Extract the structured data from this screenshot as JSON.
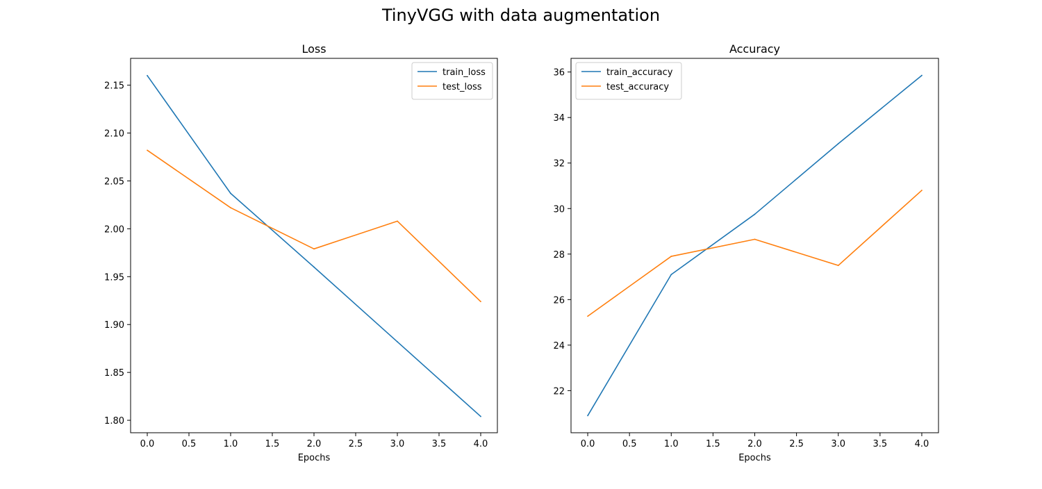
{
  "figure": {
    "suptitle": "TinyVGG with data augmentation"
  },
  "chart_data": [
    {
      "type": "line",
      "title": "Loss",
      "xlabel": "Epochs",
      "ylabel": "",
      "x": [
        0,
        1,
        2,
        3,
        4
      ],
      "xlim": [
        -0.2,
        4.2
      ],
      "ylim": [
        1.787,
        2.178
      ],
      "xticks": [
        0.0,
        0.5,
        1.0,
        1.5,
        2.0,
        2.5,
        3.0,
        3.5,
        4.0
      ],
      "xtick_labels": [
        "0.0",
        "0.5",
        "1.0",
        "1.5",
        "2.0",
        "2.5",
        "3.0",
        "3.5",
        "4.0"
      ],
      "yticks": [
        1.8,
        1.85,
        1.9,
        1.95,
        2.0,
        2.05,
        2.1,
        2.15
      ],
      "ytick_labels": [
        "1.80",
        "1.85",
        "1.90",
        "1.95",
        "2.00",
        "2.05",
        "2.10",
        "2.15"
      ],
      "legend": "upper right",
      "grid": false,
      "series": [
        {
          "name": "train_loss",
          "color": "#1f77b4",
          "values": [
            2.16,
            2.037,
            1.96,
            1.882,
            1.804
          ]
        },
        {
          "name": "test_loss",
          "color": "#ff7f0e",
          "values": [
            2.082,
            2.022,
            1.979,
            2.008,
            1.924
          ]
        }
      ]
    },
    {
      "type": "line",
      "title": "Accuracy",
      "xlabel": "Epochs",
      "ylabel": "",
      "x": [
        0,
        1,
        2,
        3,
        4
      ],
      "xlim": [
        -0.2,
        4.2
      ],
      "ylim": [
        20.15,
        36.6
      ],
      "xticks": [
        0.0,
        0.5,
        1.0,
        1.5,
        2.0,
        2.5,
        3.0,
        3.5,
        4.0
      ],
      "xtick_labels": [
        "0.0",
        "0.5",
        "1.0",
        "1.5",
        "2.0",
        "2.5",
        "3.0",
        "3.5",
        "4.0"
      ],
      "yticks": [
        22,
        24,
        26,
        28,
        30,
        32,
        34,
        36
      ],
      "ytick_labels": [
        "22",
        "24",
        "26",
        "28",
        "30",
        "32",
        "34",
        "36"
      ],
      "legend": "upper left",
      "grid": false,
      "series": [
        {
          "name": "train_accuracy",
          "color": "#1f77b4",
          "values": [
            20.9,
            27.1,
            29.75,
            32.85,
            35.85
          ]
        },
        {
          "name": "test_accuracy",
          "color": "#ff7f0e",
          "values": [
            25.27,
            27.9,
            28.65,
            27.5,
            30.8
          ]
        }
      ]
    }
  ]
}
